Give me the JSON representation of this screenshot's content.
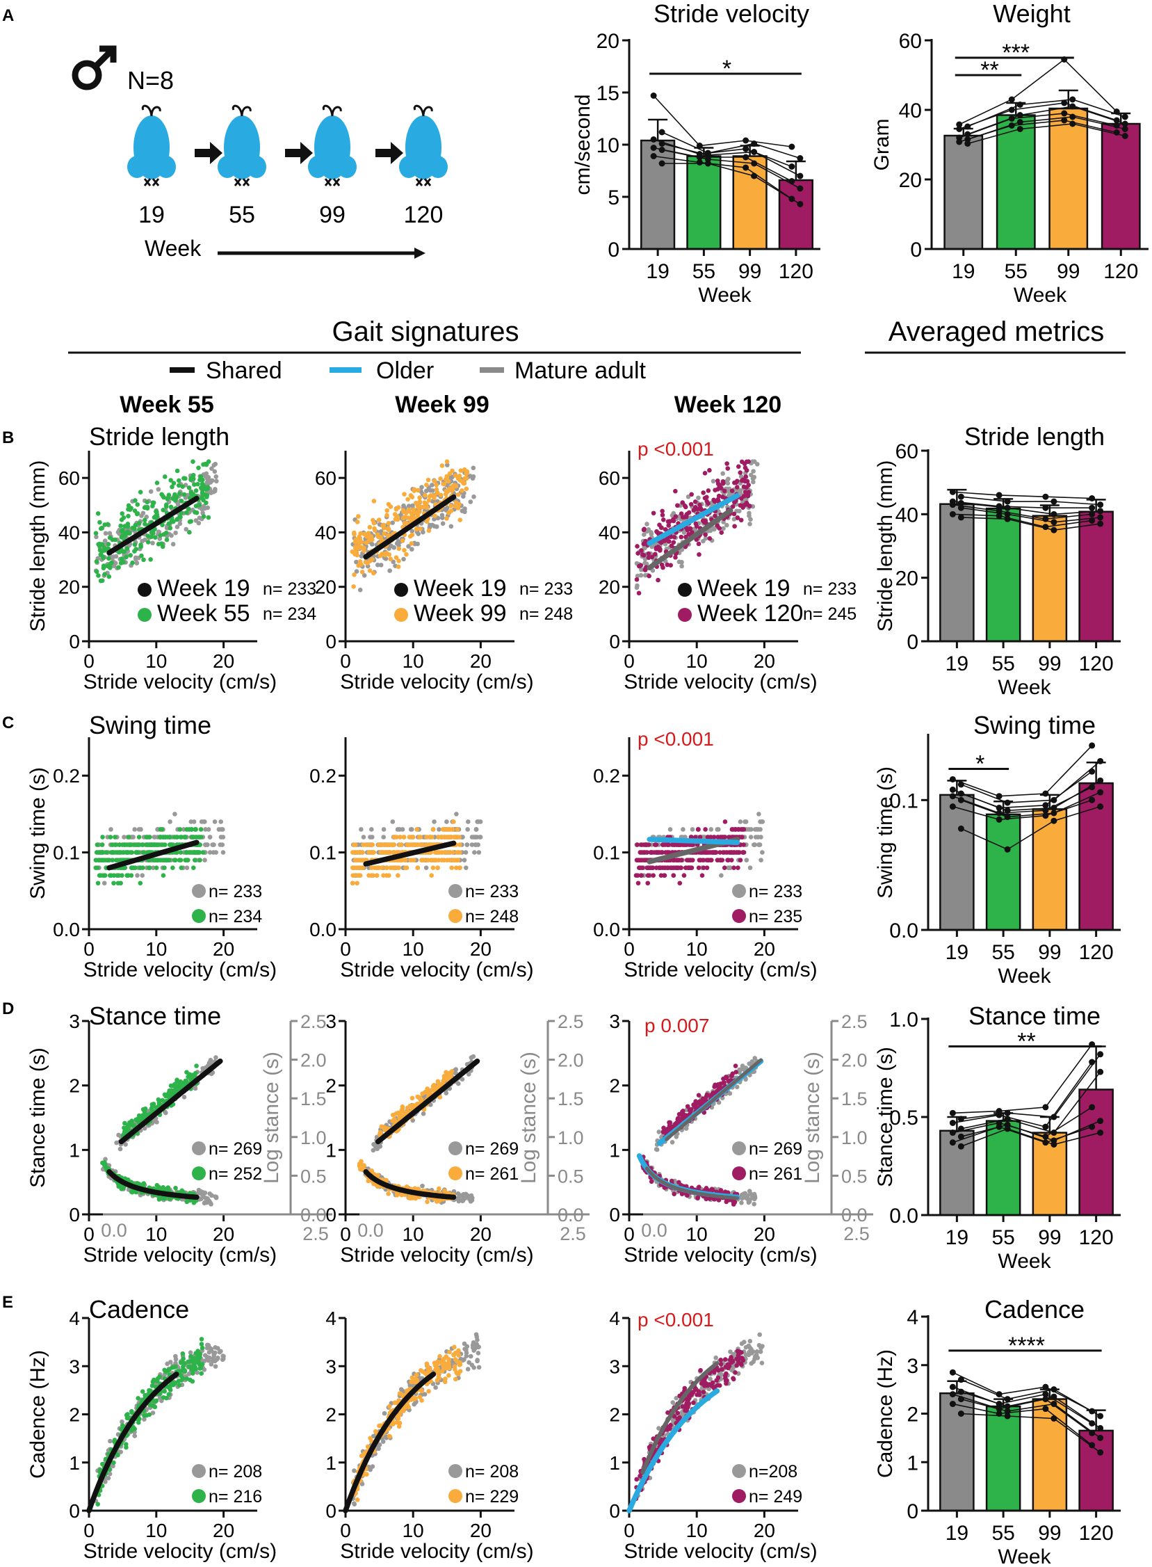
{
  "colors": {
    "gray": "#8a8a8a",
    "green": "#2db34a",
    "orange": "#f9ac3c",
    "purple": "#a01c62",
    "blue": "#29abe2",
    "black": "#111111",
    "grayDot": "#999999",
    "red": "#d7191c"
  },
  "panelA": {
    "letter": "A",
    "mouse_label": "N=8",
    "weeks": [
      "19",
      "55",
      "99",
      "120"
    ],
    "arrow_label": "Week"
  },
  "header": {
    "gait_title": "Gait signatures",
    "avg_title": "Averaged metrics",
    "legend": [
      {
        "label": "Shared",
        "color": "#111111"
      },
      {
        "label": "Older",
        "color": "#29abe2"
      },
      {
        "label": "Mature adult",
        "color": "#8a8a8a"
      }
    ],
    "col_titles": [
      "Week 55",
      "Week 99",
      "Week 120"
    ]
  },
  "row_letters": [
    "B",
    "C",
    "D",
    "E"
  ],
  "chart_data": [
    {
      "id": "stride_velocity_bar",
      "type": "bar",
      "title": "Stride velocity",
      "xlabel": "Week",
      "ylabel": "cm/second",
      "categories": [
        "19",
        "55",
        "99",
        "120"
      ],
      "values": [
        10.4,
        8.9,
        8.9,
        6.6
      ],
      "errors": [
        2.0,
        0.8,
        1.0,
        1.8
      ],
      "ylim": [
        0,
        20
      ],
      "yticks": [
        "0",
        "5",
        "10",
        "15",
        "20"
      ],
      "subjects": [
        [
          14.7,
          11.2,
          10.5,
          10.1,
          9.7,
          9.5,
          8.9,
          8.2
        ],
        [
          9.9,
          9.2,
          9.1,
          9.0,
          8.8,
          8.6,
          8.3,
          8.2
        ],
        [
          10.4,
          10.1,
          9.6,
          9.3,
          8.8,
          8.2,
          7.8,
          7.0
        ],
        [
          9.8,
          8.7,
          7.9,
          7.0,
          6.5,
          5.8,
          4.8,
          4.3
        ]
      ],
      "annotations": [
        {
          "text": "*",
          "from": 0,
          "to": 3,
          "level": 16.8
        }
      ]
    },
    {
      "id": "weight_bar",
      "type": "bar",
      "title": "Weight",
      "xlabel": "Week",
      "ylabel": "Gram",
      "categories": [
        "19",
        "55",
        "99",
        "120"
      ],
      "values": [
        32.6,
        38.5,
        40.4,
        36.0
      ],
      "errors": [
        2.0,
        3.5,
        5.2,
        3.0
      ],
      "ylim": [
        0,
        60
      ],
      "yticks": [
        "0",
        "20",
        "40",
        "60"
      ],
      "subjects": [
        [
          35.8,
          35.2,
          34.5,
          33.0,
          32.0,
          31.5,
          30.8,
          30.3
        ],
        [
          43.0,
          41.5,
          40.0,
          38.5,
          37.5,
          36.5,
          35.5,
          34.5
        ],
        [
          54.5,
          43.0,
          42.0,
          41.0,
          39.0,
          38.0,
          37.0,
          36.0
        ],
        [
          39.5,
          38.0,
          37.0,
          36.0,
          35.5,
          34.5,
          33.5,
          32.5
        ]
      ],
      "annotations": [
        {
          "text": "**",
          "from": 0,
          "to": 1,
          "level": 50
        },
        {
          "text": "***",
          "from": 0,
          "to": 2,
          "level": 55
        }
      ]
    },
    {
      "id": "stride_length_scatter",
      "type": "scatter",
      "row_title": "Stride length",
      "ylabel": "Stride length (mm)",
      "xlabel": "Stride velocity (cm/s)",
      "xlim": [
        0,
        25
      ],
      "ylim": [
        0,
        70
      ],
      "xticks": [
        "0",
        "10",
        "20"
      ],
      "yticks": [
        "0",
        "20",
        "40",
        "60"
      ],
      "panels": [
        {
          "pval": "",
          "shared": [
            [
              3,
              32.5
            ],
            [
              16,
              52.5
            ]
          ],
          "legend": [
            {
              "label": "Week 19",
              "n": "n= 233"
            },
            {
              "label": "Week 55",
              "n": "n= 234"
            }
          ]
        },
        {
          "pval": "",
          "shared": [
            [
              3,
              31
            ],
            [
              16,
              53
            ]
          ],
          "legend": [
            {
              "label": "Week 19",
              "n": "n= 233"
            },
            {
              "label": "Week 99",
              "n": "n= 248"
            }
          ]
        },
        {
          "pval": "p <0.001",
          "older": [
            [
              3,
              36
            ],
            [
              16,
              53.5
            ]
          ],
          "mature": [
            [
              3,
              27
            ],
            [
              15,
              48
            ]
          ],
          "legend": [
            {
              "label": "Week 19",
              "n": "n= 233"
            },
            {
              "label": "Week 120",
              "n": "n= 245"
            }
          ]
        }
      ]
    },
    {
      "id": "stride_length_bar",
      "type": "bar",
      "title": "Stride length",
      "xlabel": "Week",
      "ylabel": "Stride length (mm)",
      "categories": [
        "19",
        "55",
        "99",
        "120"
      ],
      "values": [
        43.2,
        41.8,
        39.5,
        40.8
      ],
      "errors": [
        4.5,
        3.0,
        3.3,
        3.8
      ],
      "ylim": [
        0,
        60
      ],
      "yticks": [
        "0",
        "20",
        "40",
        "60"
      ],
      "subjects": [
        [
          47.0,
          45.5,
          44.0,
          43.5,
          43.0,
          42.0,
          40.0,
          39.0
        ],
        [
          46.0,
          44.0,
          42.5,
          42.0,
          41.0,
          40.0,
          39.5,
          38.5
        ],
        [
          45.5,
          44.0,
          42.0,
          40.0,
          38.5,
          37.5,
          36.0,
          35.0
        ],
        [
          45.0,
          43.0,
          42.0,
          41.0,
          40.0,
          39.0,
          38.0,
          37.0
        ]
      ],
      "annotations": []
    },
    {
      "id": "swing_time_scatter",
      "type": "scatter",
      "row_title": "Swing time",
      "ylabel": "Swing time (s)",
      "xlabel": "Stride velocity (cm/s)",
      "xlim": [
        0,
        25
      ],
      "ylim": [
        0,
        0.25
      ],
      "xticks": [
        "0",
        "10",
        "20"
      ],
      "yticks": [
        "0.0",
        "0.1",
        "0.2"
      ],
      "panels": [
        {
          "pval": "",
          "shared": [
            [
              3,
              0.08
            ],
            [
              16,
              0.113
            ]
          ],
          "legend": [
            {
              "label": "",
              "n": "n= 233"
            },
            {
              "label": "",
              "n": "n= 234"
            }
          ]
        },
        {
          "pval": "",
          "shared": [
            [
              3,
              0.085
            ],
            [
              16,
              0.112
            ]
          ],
          "legend": [
            {
              "label": "",
              "n": "n= 233"
            },
            {
              "label": "",
              "n": "n= 248"
            }
          ]
        },
        {
          "pval": "p <0.001",
          "older": [
            [
              3,
              0.117
            ],
            [
              16,
              0.113
            ]
          ],
          "mature": [
            [
              3,
              0.088
            ],
            [
              16,
              0.117
            ]
          ],
          "legend": [
            {
              "label": "",
              "n": "n= 233"
            },
            {
              "label": "",
              "n": "n= 235"
            }
          ]
        }
      ]
    },
    {
      "id": "swing_time_bar",
      "type": "bar",
      "title": "Swing time",
      "xlabel": "Week",
      "ylabel": "Swing time (s)",
      "categories": [
        "19",
        "55",
        "99",
        "120"
      ],
      "values": [
        0.104,
        0.089,
        0.093,
        0.113
      ],
      "errors": [
        0.011,
        0.01,
        0.011,
        0.016
      ],
      "ylim": [
        0,
        0.15
      ],
      "yticks": [
        "0.0",
        "0.1"
      ],
      "subjects": [
        [
          0.116,
          0.112,
          0.108,
          0.105,
          0.103,
          0.1,
          0.095,
          0.078
        ],
        [
          0.103,
          0.098,
          0.094,
          0.092,
          0.09,
          0.087,
          0.085,
          0.062
        ],
        [
          0.105,
          0.1,
          0.096,
          0.094,
          0.092,
          0.09,
          0.088,
          0.084
        ],
        [
          0.142,
          0.13,
          0.122,
          0.115,
          0.11,
          0.106,
          0.1,
          0.095
        ]
      ],
      "annotations": [
        {
          "text": "*",
          "from": 0,
          "to": 1,
          "level": 0.124
        }
      ]
    },
    {
      "id": "stance_time_scatter",
      "type": "scatter",
      "row_title": "Stance time",
      "ylabel": "Stance time (s)",
      "y2label": "Log stance (s)",
      "xlabel": "Stride velocity (cm/s)",
      "xlim": [
        0,
        25
      ],
      "ylim": [
        0,
        3
      ],
      "xticks": [
        "0",
        "10",
        "20"
      ],
      "yticks": [
        "0",
        "1",
        "2",
        "3"
      ],
      "y2ticks": [
        "0.0",
        "0.5",
        "1.0",
        "1.5",
        "2.0",
        "2.5"
      ],
      "x2ticks": [
        "0.0",
        "2.5"
      ],
      "panels": [
        {
          "pval": "",
          "legend": [
            {
              "label": "",
              "n": "n= 269"
            },
            {
              "label": "",
              "n": "n= 252"
            }
          ]
        },
        {
          "pval": "",
          "legend": [
            {
              "label": "",
              "n": "n= 269"
            },
            {
              "label": "",
              "n": "n= 261"
            }
          ]
        },
        {
          "pval": "p 0.007",
          "legend": [
            {
              "label": "",
              "n": "n= 269"
            },
            {
              "label": "",
              "n": "n= 261"
            }
          ]
        }
      ]
    },
    {
      "id": "stance_time_bar",
      "type": "bar",
      "title": "Stance time",
      "xlabel": "Week",
      "ylabel": "Stance time (s)",
      "categories": [
        "19",
        "55",
        "99",
        "120"
      ],
      "values": [
        0.43,
        0.48,
        0.42,
        0.64
      ],
      "errors": [
        0.07,
        0.04,
        0.08,
        0.22
      ],
      "ylim": [
        0,
        1.0
      ],
      "yticks": [
        "0.0",
        "0.5",
        "1.0"
      ],
      "subjects": [
        [
          0.52,
          0.49,
          0.47,
          0.44,
          0.42,
          0.4,
          0.37,
          0.35
        ],
        [
          0.53,
          0.52,
          0.51,
          0.49,
          0.47,
          0.46,
          0.45,
          0.44
        ],
        [
          0.55,
          0.5,
          0.45,
          0.42,
          0.4,
          0.38,
          0.37,
          0.36
        ],
        [
          0.87,
          0.82,
          0.78,
          0.73,
          0.55,
          0.48,
          0.45,
          0.42
        ]
      ],
      "annotations": [
        {
          "text": "**",
          "from": 0,
          "to": 3,
          "level": 0.86
        }
      ]
    },
    {
      "id": "cadence_scatter",
      "type": "scatter",
      "row_title": "Cadence",
      "ylabel": "Cadence (Hz)",
      "xlabel": "Stride velocity (cm/s)",
      "xlim": [
        0,
        25
      ],
      "ylim": [
        0,
        4
      ],
      "xticks": [
        "0",
        "10",
        "20"
      ],
      "yticks": [
        "0",
        "1",
        "2",
        "3",
        "4"
      ],
      "panels": [
        {
          "pval": "",
          "legend": [
            {
              "label": "",
              "n": "n= 208"
            },
            {
              "label": "",
              "n": "n= 216"
            }
          ]
        },
        {
          "pval": "",
          "legend": [
            {
              "label": "",
              "n": "n= 208"
            },
            {
              "label": "",
              "n": "n= 229"
            }
          ]
        },
        {
          "pval": "p <0.001",
          "legend": [
            {
              "label": "",
              "n": "n=208"
            },
            {
              "label": "",
              "n": "n= 249"
            }
          ]
        }
      ]
    },
    {
      "id": "cadence_bar",
      "type": "bar",
      "title": "Cadence",
      "xlabel": "Week",
      "ylabel": "Cadence (Hz)",
      "categories": [
        "19",
        "55",
        "99",
        "120"
      ],
      "values": [
        2.42,
        2.15,
        2.3,
        1.65
      ],
      "errors": [
        0.25,
        0.15,
        0.2,
        0.42
      ],
      "ylim": [
        0,
        4
      ],
      "yticks": [
        "0",
        "1",
        "2",
        "3",
        "4"
      ],
      "subjects": [
        [
          2.85,
          2.7,
          2.55,
          2.45,
          2.4,
          2.3,
          2.2,
          2.0
        ],
        [
          2.4,
          2.3,
          2.2,
          2.15,
          2.1,
          2.05,
          2.0,
          1.95
        ],
        [
          2.55,
          2.5,
          2.4,
          2.35,
          2.3,
          2.2,
          2.1,
          1.9
        ],
        [
          2.05,
          1.95,
          1.8,
          1.7,
          1.6,
          1.5,
          1.35,
          1.2
        ]
      ],
      "annotations": [
        {
          "text": "****",
          "from": 0,
          "to": 3,
          "level": 3.3
        }
      ]
    }
  ]
}
